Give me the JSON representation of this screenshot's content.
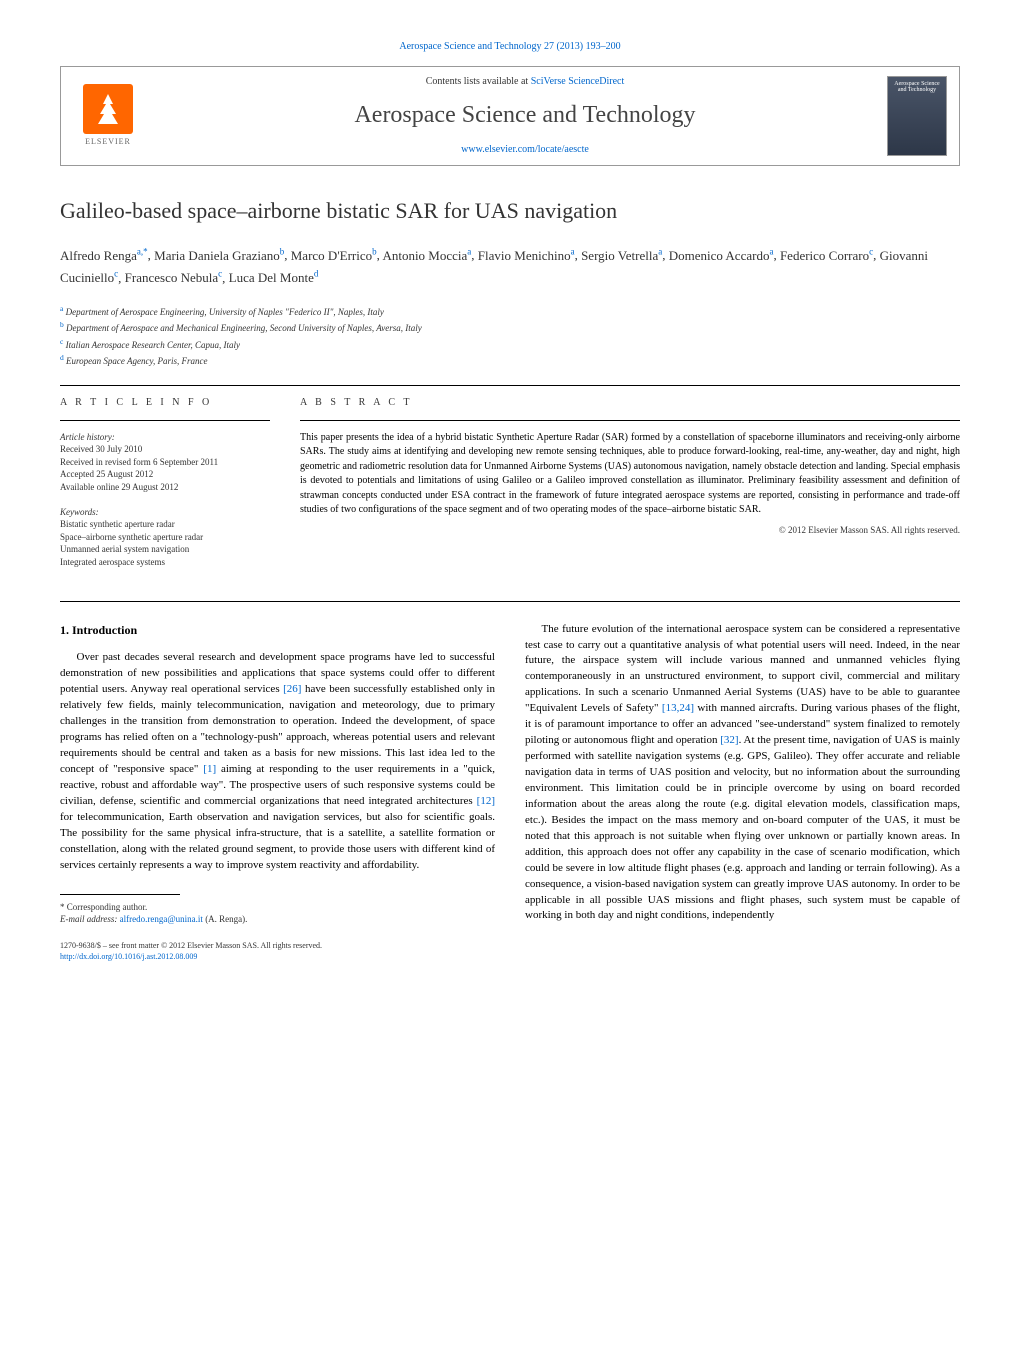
{
  "header": {
    "top_link": "Aerospace Science and Technology 27 (2013) 193–200",
    "contents_prefix": "Contents lists available at ",
    "contents_link": "SciVerse ScienceDirect",
    "journal_name": "Aerospace Science and Technology",
    "journal_url": "www.elsevier.com/locate/aescte",
    "publisher": "ELSEVIER",
    "cover_title": "Aerospace Science and Technology"
  },
  "article": {
    "title": "Galileo-based space–airborne bistatic SAR for UAS navigation",
    "authors_html": [
      {
        "name": "Alfredo Renga",
        "affils": "a,*"
      },
      {
        "name": "Maria Daniela Graziano",
        "affils": "b"
      },
      {
        "name": "Marco D'Errico",
        "affils": "b"
      },
      {
        "name": "Antonio Moccia",
        "affils": "a"
      },
      {
        "name": "Flavio Menichino",
        "affils": "a"
      },
      {
        "name": "Sergio Vetrella",
        "affils": "a"
      },
      {
        "name": "Domenico Accardo",
        "affils": "a"
      },
      {
        "name": "Federico Corraro",
        "affils": "c"
      },
      {
        "name": "Giovanni Cuciniello",
        "affils": "c"
      },
      {
        "name": "Francesco Nebula",
        "affils": "c"
      },
      {
        "name": "Luca Del Monte",
        "affils": "d"
      }
    ],
    "affiliations": [
      {
        "key": "a",
        "text": "Department of Aerospace Engineering, University of Naples \"Federico II\", Naples, Italy"
      },
      {
        "key": "b",
        "text": "Department of Aerospace and Mechanical Engineering, Second University of Naples, Aversa, Italy"
      },
      {
        "key": "c",
        "text": "Italian Aerospace Research Center, Capua, Italy"
      },
      {
        "key": "d",
        "text": "European Space Agency, Paris, France"
      }
    ]
  },
  "article_info": {
    "heading": "A R T I C L E   I N F O",
    "history_label": "Article history:",
    "history": [
      "Received 30 July 2010",
      "Received in revised form 6 September 2011",
      "Accepted 25 August 2012",
      "Available online 29 August 2012"
    ],
    "keywords_label": "Keywords:",
    "keywords": [
      "Bistatic synthetic aperture radar",
      "Space–airborne synthetic aperture radar",
      "Unmanned aerial system navigation",
      "Integrated aerospace systems"
    ]
  },
  "abstract": {
    "heading": "A B S T R A C T",
    "text": "This paper presents the idea of a hybrid bistatic Synthetic Aperture Radar (SAR) formed by a constellation of spaceborne illuminators and receiving-only airborne SARs. The study aims at identifying and developing new remote sensing techniques, able to produce forward-looking, real-time, any-weather, day and night, high geometric and radiometric resolution data for Unmanned Airborne Systems (UAS) autonomous navigation, namely obstacle detection and landing. Special emphasis is devoted to potentials and limitations of using Galileo or a Galileo improved constellation as illuminator. Preliminary feasibility assessment and definition of strawman concepts conducted under ESA contract in the framework of future integrated aerospace systems are reported, consisting in performance and trade-off studies of two configurations of the space segment and of two operating modes of the space–airborne bistatic SAR.",
    "copyright": "© 2012 Elsevier Masson SAS. All rights reserved."
  },
  "body": {
    "section1_heading": "1. Introduction",
    "col1_p1": "Over past decades several research and development space programs have led to successful demonstration of new possibilities and applications that space systems could offer to different potential users. Anyway real operational services [26] have been successfully established only in relatively few fields, mainly telecommunication, navigation and meteorology, due to primary challenges in the transition from demonstration to operation. Indeed the development, of space programs has relied often on a \"technology-push\" approach, whereas potential users and relevant requirements should be central and taken as a basis for new missions. This last idea led to the concept of \"responsive space\" [1] aiming at responding to the user requirements in a \"quick, reactive, robust and affordable way\". The prospective users of such responsive systems could be civilian, defense, scientific and commercial organizations that need integrated architectures [12] for telecommunication, Earth observation and navigation services, but also for scientific goals. The possibility for the same physical infra-structure, that is a satellite, a satellite formation or constellation, along with the related ground segment, to provide those users with different kind of services certainly represents a way to improve system reactivity and affordability.",
    "col2_p1": "The future evolution of the international aerospace system can be considered a representative test case to carry out a quantitative analysis of what potential users will need. Indeed, in the near future, the airspace system will include various manned and unmanned vehicles flying contemporaneously in an unstructured environment, to support civil, commercial and military applications. In such a scenario Unmanned Aerial Systems (UAS) have to be able to guarantee \"Equivalent Levels of Safety\" [13,24] with manned aircrafts. During various phases of the flight, it is of paramount importance to offer an advanced \"see-understand\" system finalized to remotely piloting or autonomous flight and operation [32]. At the present time, navigation of UAS is mainly performed with satellite navigation systems (e.g. GPS, Galileo). They offer accurate and reliable navigation data in terms of UAS position and velocity, but no information about the surrounding environment. This limitation could be in principle overcome by using on board recorded information about the areas along the route (e.g. digital elevation models, classification maps, etc.). Besides the impact on the mass memory and on-board computer of the UAS, it must be noted that this approach is not suitable when flying over unknown or partially known areas. In addition, this approach does not offer any capability in the case of scenario modification, which could be severe in low altitude flight phases (e.g. approach and landing or terrain following). As a consequence, a vision-based navigation system can greatly improve UAS autonomy. In order to be applicable in all possible UAS missions and flight phases, such system must be capable of working in both day and night conditions, independently"
  },
  "footnote": {
    "corresponding": "* Corresponding author.",
    "email_label": "E-mail address:",
    "email": "alfredo.renga@unina.it",
    "email_name": "(A. Renga)."
  },
  "bottom": {
    "issn_line": "1270-9638/$ – see front matter © 2012 Elsevier Masson SAS. All rights reserved.",
    "doi": "http://dx.doi.org/10.1016/j.ast.2012.08.009"
  },
  "colors": {
    "link": "#0066cc",
    "text": "#000000",
    "gray": "#333333",
    "orange": "#ff6600"
  },
  "typography": {
    "body_fontsize": 11,
    "title_fontsize": 22,
    "journal_fontsize": 24,
    "small_fontsize": 9
  }
}
